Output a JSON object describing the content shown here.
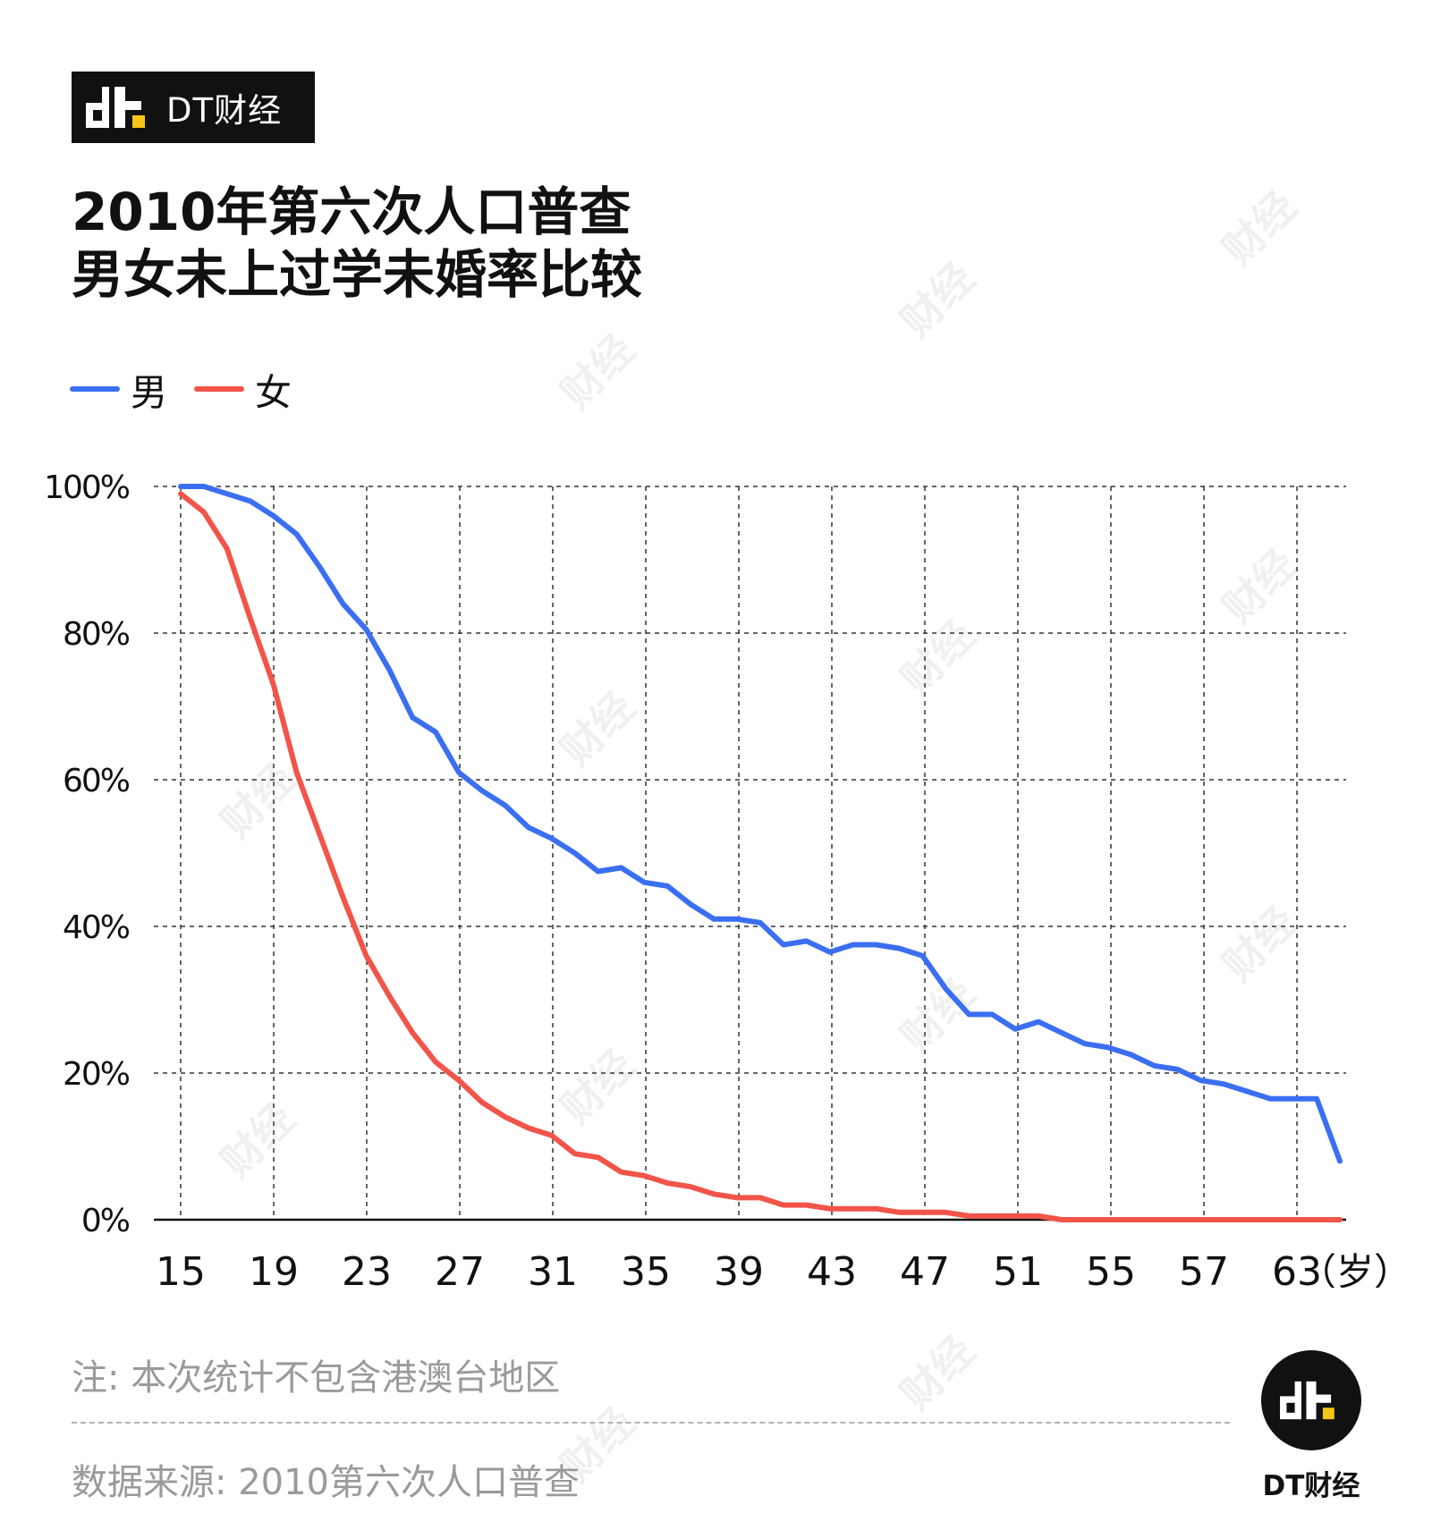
{
  "brand": {
    "name": "DT财经",
    "badge_name": "DT财经"
  },
  "title": {
    "line1": "2010年第六次人口普查",
    "line2": "男女未上过学未婚率比较"
  },
  "note": "注: 本次统计不包含港澳台地区",
  "source": "数据来源: 2010第六次人口普查",
  "watermark": "财经",
  "colors": {
    "male": "#3b6ff2",
    "female": "#f25449",
    "logo_dot": "#f5c518"
  },
  "chart_data": {
    "type": "line",
    "x_unit_label": "（岁）",
    "x_tick_labels": [
      "15",
      "19",
      "23",
      "27",
      "31",
      "35",
      "39",
      "43",
      "47",
      "51",
      "55",
      "57",
      "63"
    ],
    "y_tick_labels": [
      "0%",
      "20%",
      "40%",
      "60%",
      "80%",
      "100%"
    ],
    "ylim": [
      0,
      100
    ],
    "grid": true,
    "legend_position": "top-left",
    "series": [
      {
        "name": "男",
        "color": "#3b6ff2",
        "values": [
          100,
          100,
          99,
          98,
          96,
          93.5,
          89,
          84,
          80.5,
          75,
          68.5,
          66.5,
          61,
          58.5,
          56.5,
          53.5,
          52,
          50,
          47.5,
          48,
          46,
          45.5,
          43,
          41,
          41,
          40.5,
          37.5,
          38,
          36.5,
          37.5,
          37.5,
          37,
          36,
          31.5,
          28,
          28,
          26,
          27,
          25.5,
          24,
          23.5,
          22.5,
          21,
          20.5,
          19,
          18.5,
          17.5,
          16.5,
          16.5,
          16.5,
          8
        ]
      },
      {
        "name": "女",
        "color": "#f25449",
        "values": [
          99,
          96.5,
          91.5,
          82,
          73,
          61,
          52.5,
          44,
          36,
          30.5,
          25.5,
          21.5,
          19,
          16,
          14,
          12.5,
          11.5,
          9,
          8.5,
          6.5,
          6,
          5,
          4.5,
          3.5,
          3,
          3,
          2,
          2,
          1.5,
          1.5,
          1.5,
          1,
          1,
          1,
          0.5,
          0.5,
          0.5,
          0.5,
          0,
          0,
          0,
          0,
          0,
          0,
          0,
          0,
          0,
          0,
          0,
          0,
          0
        ]
      }
    ]
  }
}
